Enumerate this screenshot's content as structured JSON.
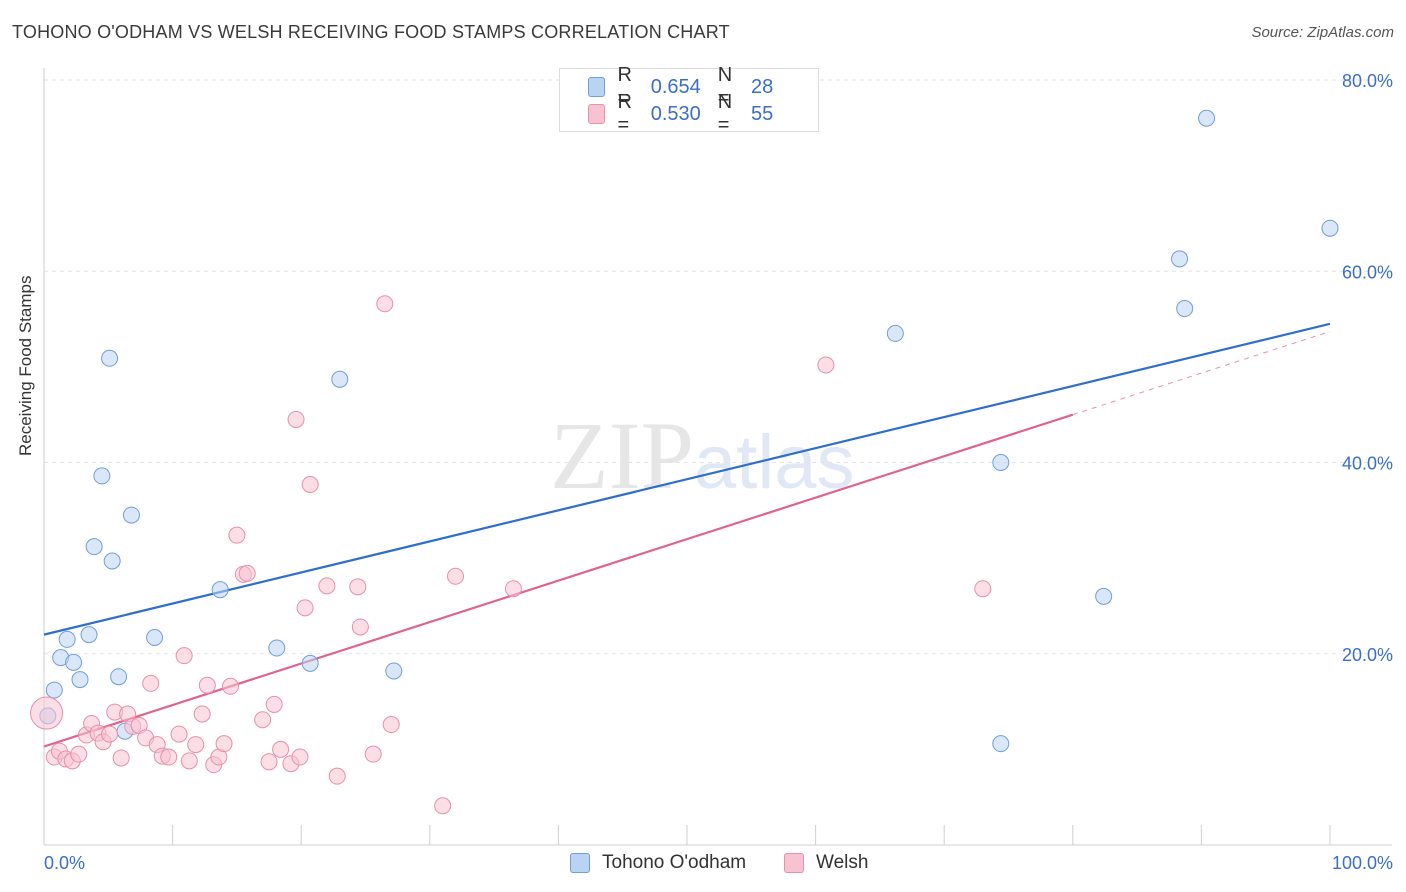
{
  "header": {
    "title": "TOHONO O'ODHAM VS WELSH RECEIVING FOOD STAMPS CORRELATION CHART",
    "source": "Source: ZipAtlas.com"
  },
  "watermark": {
    "part1": "ZIP",
    "part2": "atlas"
  },
  "colors": {
    "blue_fill": "#b9d3f2",
    "blue_stroke": "#6f9fd8",
    "blue_line": "#2f6fcc",
    "pink_fill": "#f7c3d2",
    "pink_stroke": "#e88fab",
    "pink_line": "#e0628f",
    "tick_label": "#3a6fc4",
    "grid": "#e3e3e3"
  },
  "legend": {
    "rows": [
      {
        "r_label": "R =",
        "r_value": "0.654",
        "n_label": "N =",
        "n_value": "28"
      },
      {
        "r_label": "R =",
        "r_value": "0.530",
        "n_label": "N =",
        "n_value": "55"
      }
    ],
    "series_names": [
      "Tohono O'odham",
      "Welsh"
    ]
  },
  "chart_data": {
    "type": "scatter",
    "title": "TOHONO O'ODHAM VS WELSH RECEIVING FOOD STAMPS CORRELATION CHART",
    "xlabel": "",
    "ylabel": "Receiving Food Stamps",
    "xlim": [
      0,
      100
    ],
    "ylim": [
      0,
      80
    ],
    "x_tick_labels": [
      "0.0%",
      "100.0%"
    ],
    "y_ticks": [
      20,
      40,
      60,
      80
    ],
    "y_tick_labels": [
      "20.0%",
      "40.0%",
      "60.0%",
      "80.0%"
    ],
    "grid": true,
    "legend_position": "top-center",
    "series": [
      {
        "name": "Tohono O'odham",
        "color": "blue",
        "points": [
          [
            0.3,
            13.5
          ],
          [
            0.8,
            16.2
          ],
          [
            1.3,
            19.6
          ],
          [
            1.8,
            21.5
          ],
          [
            2.3,
            19.1
          ],
          [
            2.8,
            17.3
          ],
          [
            3.5,
            22.0
          ],
          [
            3.9,
            31.2
          ],
          [
            4.5,
            38.6
          ],
          [
            5.1,
            50.9
          ],
          [
            5.3,
            29.7
          ],
          [
            5.8,
            17.6
          ],
          [
            6.3,
            11.9
          ],
          [
            6.8,
            34.5
          ],
          [
            8.6,
            21.7
          ],
          [
            13.7,
            26.7
          ],
          [
            18.1,
            20.6
          ],
          [
            20.7,
            19.0
          ],
          [
            23.0,
            48.7
          ],
          [
            27.2,
            18.2
          ],
          [
            66.2,
            53.5
          ],
          [
            74.4,
            40.0
          ],
          [
            74.4,
            10.6
          ],
          [
            82.4,
            26.0
          ],
          [
            88.3,
            61.3
          ],
          [
            88.7,
            56.1
          ],
          [
            90.4,
            76.0
          ],
          [
            100.0,
            64.5
          ]
        ],
        "trend_line": {
          "x": [
            0,
            100
          ],
          "y": [
            22.0,
            54.5
          ]
        }
      },
      {
        "name": "Welsh",
        "color": "pink",
        "points": [
          [
            0.2,
            13.8
          ],
          [
            0.8,
            9.2
          ],
          [
            1.2,
            9.8
          ],
          [
            1.7,
            9.0
          ],
          [
            2.2,
            8.8
          ],
          [
            2.7,
            9.5
          ],
          [
            3.3,
            11.5
          ],
          [
            3.7,
            12.7
          ],
          [
            4.2,
            11.7
          ],
          [
            4.6,
            10.8
          ],
          [
            5.1,
            11.6
          ],
          [
            5.5,
            13.9
          ],
          [
            6.0,
            9.1
          ],
          [
            6.5,
            13.7
          ],
          [
            6.9,
            12.4
          ],
          [
            7.4,
            12.5
          ],
          [
            7.9,
            11.2
          ],
          [
            8.3,
            16.9
          ],
          [
            8.8,
            10.5
          ],
          [
            9.2,
            9.3
          ],
          [
            9.7,
            9.2
          ],
          [
            10.5,
            11.6
          ],
          [
            10.9,
            19.8
          ],
          [
            11.3,
            8.8
          ],
          [
            11.8,
            10.5
          ],
          [
            12.3,
            13.7
          ],
          [
            12.7,
            16.7
          ],
          [
            13.2,
            8.4
          ],
          [
            13.6,
            9.2
          ],
          [
            14.0,
            10.6
          ],
          [
            14.5,
            16.6
          ],
          [
            15.0,
            32.4
          ],
          [
            15.5,
            28.3
          ],
          [
            15.8,
            28.4
          ],
          [
            17.0,
            13.1
          ],
          [
            17.5,
            8.7
          ],
          [
            17.9,
            14.7
          ],
          [
            18.4,
            10.0
          ],
          [
            19.2,
            8.5
          ],
          [
            19.6,
            44.5
          ],
          [
            19.9,
            9.2
          ],
          [
            20.3,
            24.8
          ],
          [
            20.7,
            37.7
          ],
          [
            22.0,
            27.1
          ],
          [
            22.8,
            7.2
          ],
          [
            24.4,
            27.0
          ],
          [
            24.6,
            22.8
          ],
          [
            25.6,
            9.5
          ],
          [
            26.5,
            56.6
          ],
          [
            27.0,
            12.6
          ],
          [
            31.0,
            4.1
          ],
          [
            32.0,
            28.1
          ],
          [
            36.5,
            26.8
          ],
          [
            60.8,
            50.2
          ],
          [
            73.0,
            26.8
          ]
        ],
        "trend_line": {
          "x": [
            0,
            80
          ],
          "y": [
            10.3,
            45.0
          ]
        },
        "trend_extension": {
          "x": [
            80,
            100
          ],
          "y": [
            45.0,
            53.7
          ]
        }
      }
    ]
  }
}
